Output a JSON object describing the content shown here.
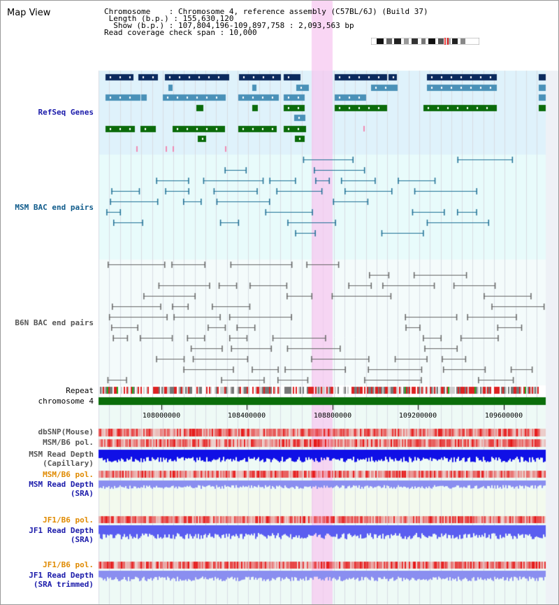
{
  "title": "Map View",
  "info": {
    "chromosome_label": "Chromosome",
    "chromosome_value": "Chromosome 4, reference assembly (C57BL/6J) (Build 37)",
    "length_label": "Length (b.p.)",
    "length_value": "155,630,120",
    "show_label": "Show (b.p.)",
    "show_value": "107,804,196-109,897,758 : 2,093,563 bp",
    "coverage_label": "Read coverage check span",
    "coverage_value": "10,000"
  },
  "tracks": {
    "refseq": "RefSeq Genes",
    "msm_bac": "MSM BAC end pairs",
    "b6n_bac": "B6N BAC end pairs",
    "repeat": "Repeat",
    "chromosome": "chromosome 4",
    "dbsnp": "dbSNP(Mouse)",
    "msm_b6_pol_1": "MSM/B6 pol.",
    "msm_depth_cap_1": "MSM Read Depth",
    "msm_depth_cap_2": "(Capillary)",
    "msm_b6_pol_2": "MSM/B6 pol.",
    "msm_depth_sra_1": "MSM Read Depth",
    "msm_depth_sra_2": "(SRA)",
    "jf1_pol_1": "JF1/B6 pol.",
    "jf1_depth_1": "JF1 Read Depth",
    "jf1_depth_2": "(SRA)",
    "jf1_pol_2": "JF1/B6 pol.",
    "jf1_trim_1": "JF1 Read Depth",
    "jf1_trim_2": "(SRA trimmed)"
  },
  "axis": {
    "ticks": [
      "108000000",
      "108400000",
      "108800000",
      "109200000",
      "109600000"
    ]
  },
  "colors": {
    "refseq_bg": "#dff2fb",
    "msm_bg": "#e8fbfb",
    "highlight": "#f7d4f3",
    "dark_gene": "#0b2a5e",
    "mid_gene": "#4a91b8",
    "green_gene": "#0a6b0a",
    "chrom_bar": "#0a6e0a"
  }
}
